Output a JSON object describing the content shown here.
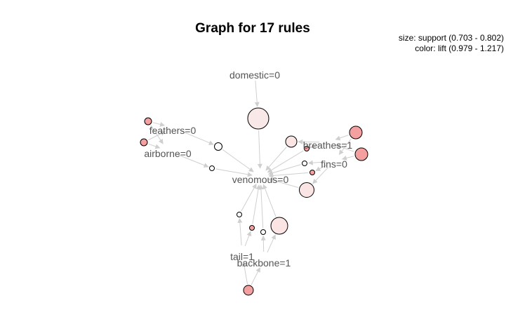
{
  "title": "Graph for 17 rules",
  "legend": {
    "size_text": "size: support (0.703 - 0.802)",
    "color_text": "color: lift (0.979 - 1.217)"
  },
  "items": [
    {
      "id": "domestic",
      "label": "domestic=0"
    },
    {
      "id": "feathers",
      "label": "feathers=0"
    },
    {
      "id": "airborne",
      "label": "airborne=0"
    },
    {
      "id": "breathes",
      "label": "breathes=1"
    },
    {
      "id": "fins",
      "label": "fins=0"
    },
    {
      "id": "venomous",
      "label": "venomous=0"
    },
    {
      "id": "tail",
      "label": "tail=1"
    },
    {
      "id": "backbone",
      "label": "backbone=1"
    }
  ],
  "rules": [
    {
      "id": "r1",
      "color": "#f9e8e8"
    },
    {
      "id": "r2",
      "color": "#f4a0a0"
    },
    {
      "id": "r3",
      "color": "#f4a0a0"
    },
    {
      "id": "r4",
      "color": "#fdfafa"
    },
    {
      "id": "r5",
      "color": "#fdfafa"
    },
    {
      "id": "r6",
      "color": "#fbe4e4"
    },
    {
      "id": "r7",
      "color": "#f4a0a0"
    },
    {
      "id": "r8",
      "color": "#f4a0a0"
    },
    {
      "id": "r9",
      "color": "#f4a0a0"
    },
    {
      "id": "r10",
      "color": "#fdfafa"
    },
    {
      "id": "r11",
      "color": "#f4a0a0"
    },
    {
      "id": "r12",
      "color": "#fbe4e4"
    },
    {
      "id": "r13",
      "color": "#fdfafa"
    },
    {
      "id": "r14",
      "color": "#f4a0a0"
    },
    {
      "id": "r15",
      "color": "#fdfafa"
    },
    {
      "id": "r16",
      "color": "#fbe4e4"
    },
    {
      "id": "r17",
      "color": "#f4a0a0"
    }
  ],
  "edges": [
    {
      "from": "domestic",
      "to": "r1"
    },
    {
      "from": "r1",
      "to": "venomous"
    },
    {
      "from": "r2",
      "to": "feathers"
    },
    {
      "from": "r3",
      "to": "feathers"
    },
    {
      "from": "r2",
      "to": "airborne"
    },
    {
      "from": "r3",
      "to": "airborne"
    },
    {
      "from": "feathers",
      "to": "r4"
    },
    {
      "from": "r4",
      "to": "venomous"
    },
    {
      "from": "airborne",
      "to": "r5"
    },
    {
      "from": "r5",
      "to": "venomous"
    },
    {
      "from": "r6",
      "to": "venomous"
    },
    {
      "from": "breathes",
      "to": "r6"
    },
    {
      "from": "r7",
      "to": "breathes"
    },
    {
      "from": "r8",
      "to": "breathes"
    },
    {
      "from": "r7",
      "to": "fins"
    },
    {
      "from": "r8",
      "to": "fins"
    },
    {
      "from": "breathes",
      "to": "r9"
    },
    {
      "from": "r9",
      "to": "venomous"
    },
    {
      "from": "fins",
      "to": "r10"
    },
    {
      "from": "r10",
      "to": "venomous"
    },
    {
      "from": "fins",
      "to": "r11"
    },
    {
      "from": "r11",
      "to": "venomous"
    },
    {
      "from": "fins",
      "to": "r12"
    },
    {
      "from": "r12",
      "to": "venomous"
    },
    {
      "from": "tail",
      "to": "r13"
    },
    {
      "from": "r13",
      "to": "venomous"
    },
    {
      "from": "tail",
      "to": "r14"
    },
    {
      "from": "r14",
      "to": "venomous"
    },
    {
      "from": "backbone",
      "to": "r15"
    },
    {
      "from": "r15",
      "to": "venomous"
    },
    {
      "from": "backbone",
      "to": "r16"
    },
    {
      "from": "r16",
      "to": "venomous"
    },
    {
      "from": "r17",
      "to": "tail"
    },
    {
      "from": "r17",
      "to": "backbone"
    }
  ]
}
